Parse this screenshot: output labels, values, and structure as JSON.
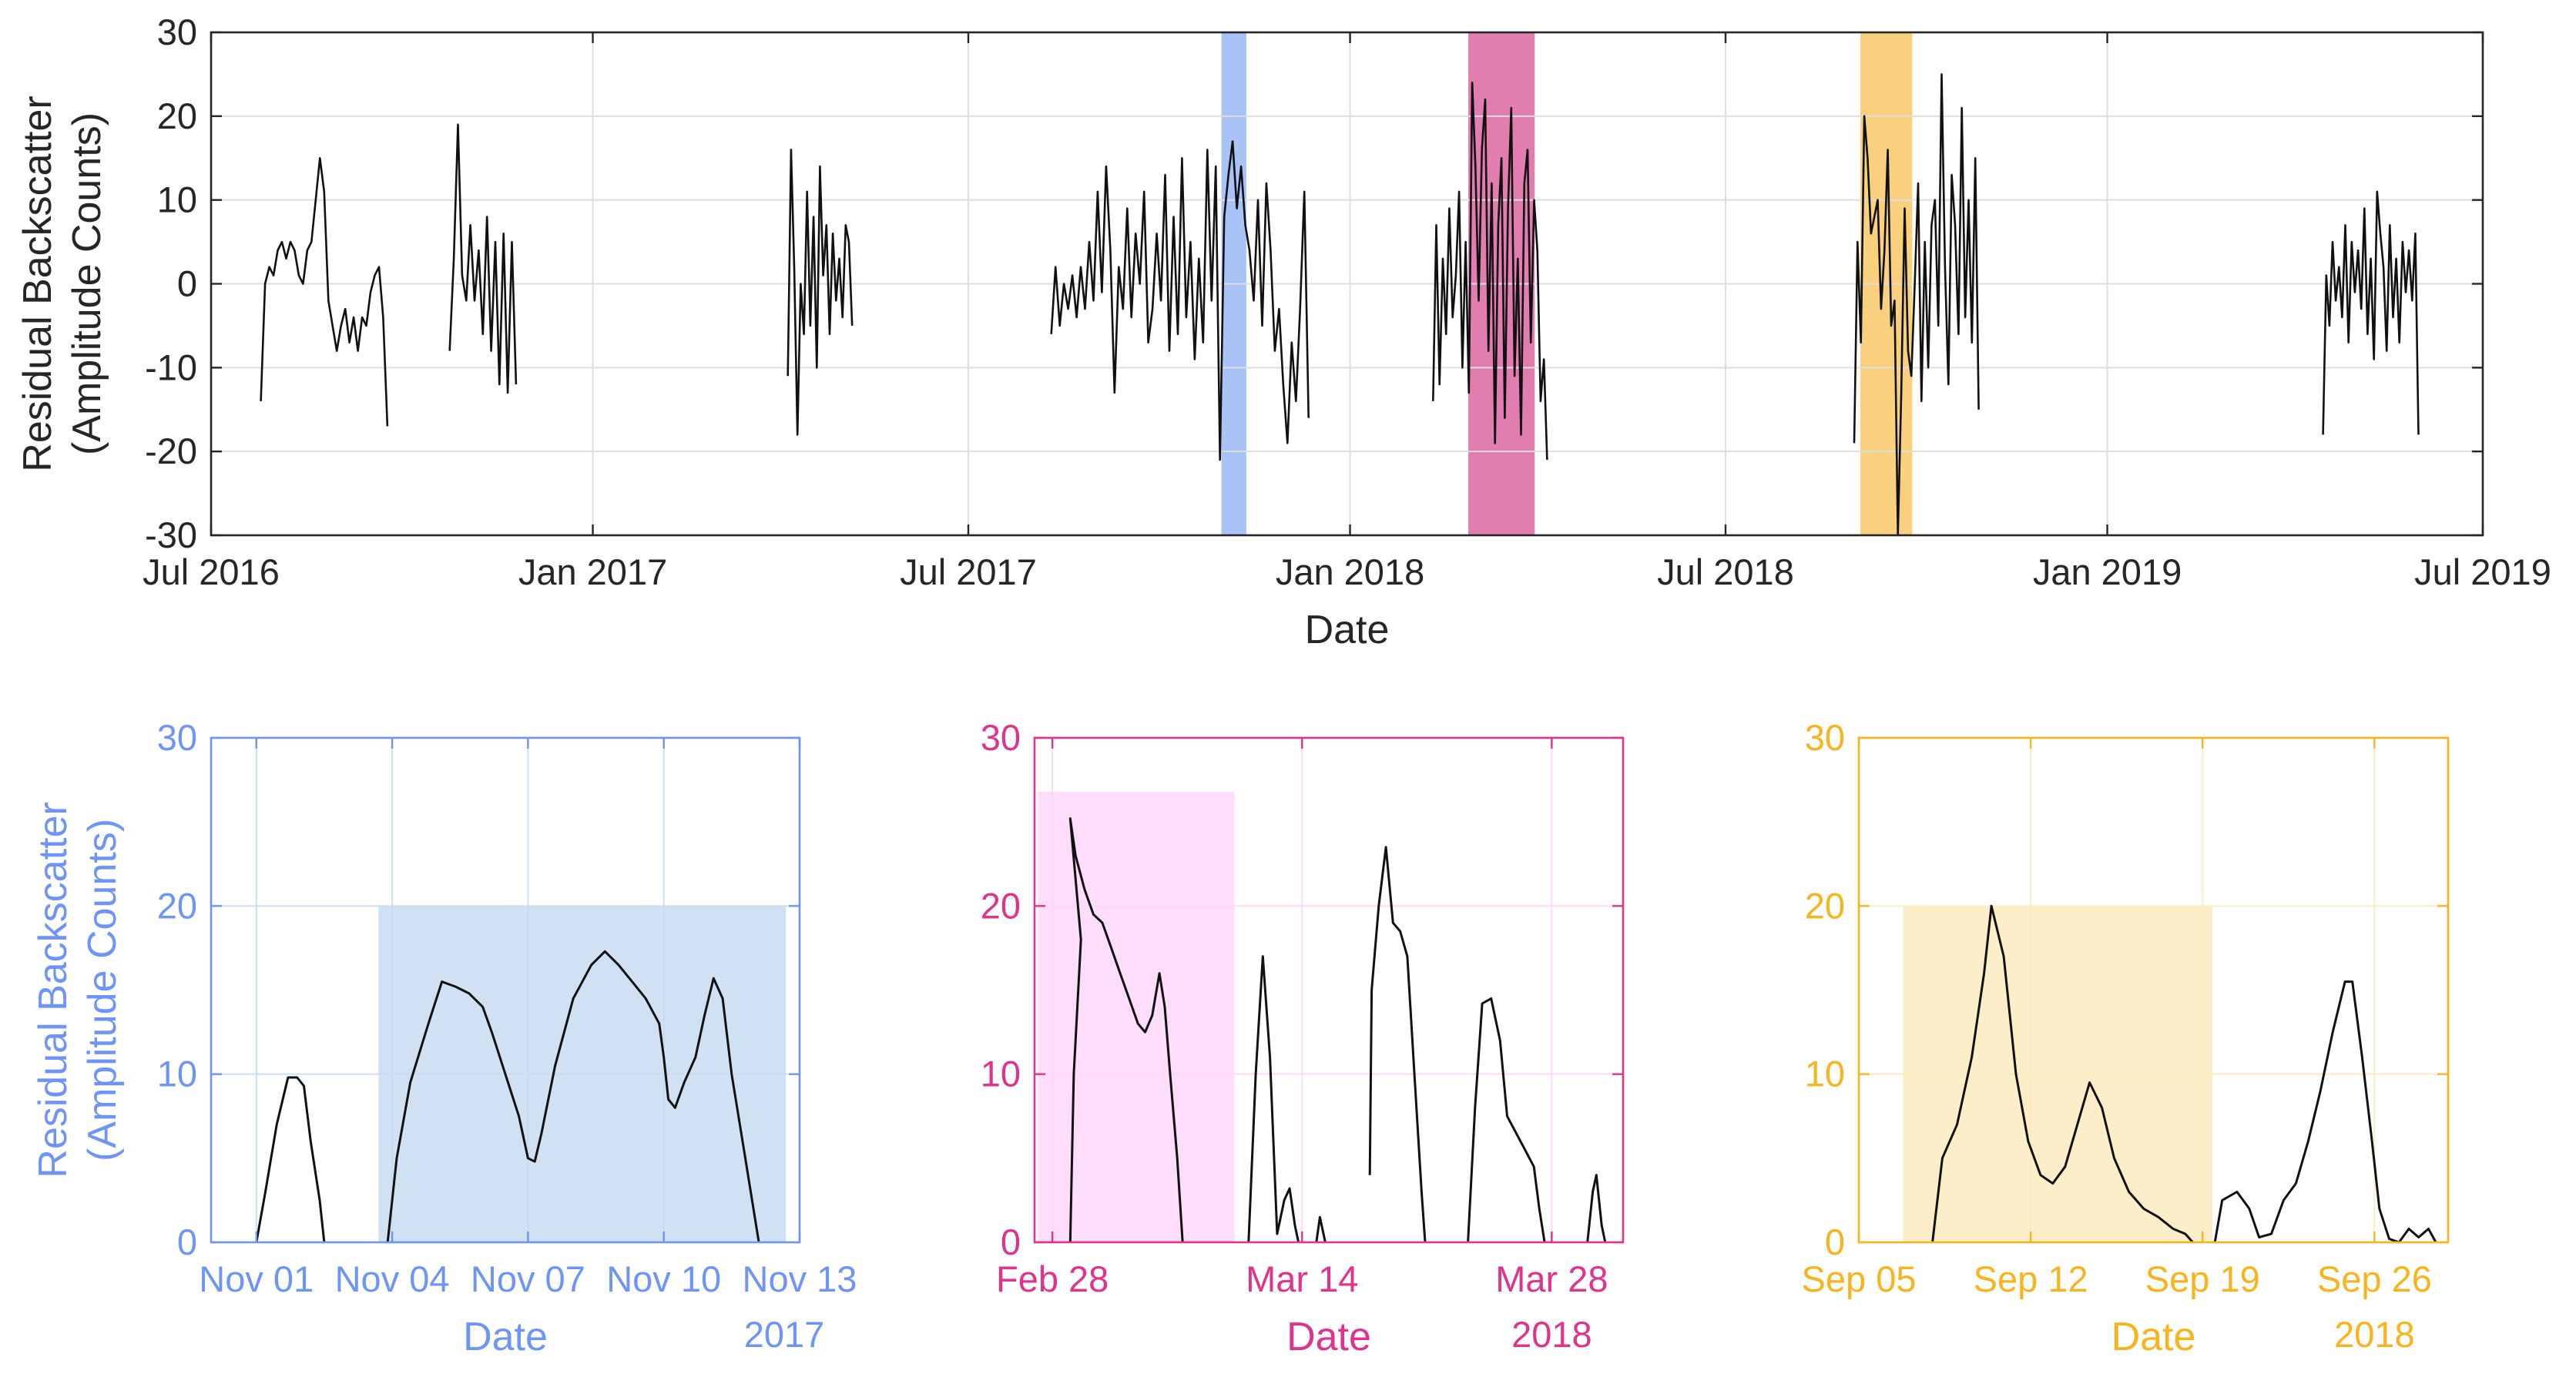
{
  "colors": {
    "blue": "#6E95F5",
    "blue_span": "#A9C3F7",
    "blue_window": "#C7DCF0",
    "pink": "#E0338C",
    "pink_span": "#E27DB0",
    "pink_window": "#FDD7F8",
    "gold": "#F8B41C",
    "gold_span": "#F9D07E",
    "gold_window": "#FBEBBF",
    "trace": "#111111",
    "axis": "#262626",
    "grid": "#DEDEDE"
  },
  "chart_data": [
    {
      "id": "overview",
      "type": "line",
      "xlabel": "Date",
      "ylabel": [
        "Residual Backscatter",
        "(Amplitude Counts)"
      ],
      "xlim": [
        "2016-07-01",
        "2019-07-01"
      ],
      "ylim": [
        -30,
        30
      ],
      "yticks": [
        30,
        20,
        10,
        0,
        -10,
        -20,
        -30
      ],
      "ytick_labels": [
        "30",
        "20",
        "10",
        "0",
        "-10",
        "-20",
        "-30"
      ],
      "xticks": [
        {
          "date": "2016-07-01",
          "label": "Jul 2016"
        },
        {
          "date": "2017-01-01",
          "label": "Jan 2017"
        },
        {
          "date": "2017-07-01",
          "label": "Jul 2017"
        },
        {
          "date": "2018-01-01",
          "label": "Jan 2018"
        },
        {
          "date": "2018-07-01",
          "label": "Jul 2018"
        },
        {
          "date": "2019-01-01",
          "label": "Jan 2019"
        },
        {
          "date": "2019-07-01",
          "label": "Jul 2019"
        }
      ],
      "highlights": [
        {
          "start": "2017-10-31",
          "end": "2017-11-12",
          "color": "blue"
        },
        {
          "start": "2018-02-27",
          "end": "2018-03-31",
          "color": "pink"
        },
        {
          "start": "2018-09-04",
          "end": "2018-09-29",
          "color": "gold"
        }
      ],
      "segments": [
        {
          "start": "2016-07-25",
          "end": "2016-09-24",
          "values": [
            -14,
            0,
            2,
            1,
            4,
            5,
            3,
            5,
            4,
            1,
            0,
            4,
            5,
            10,
            15,
            11,
            -2,
            -5,
            -8,
            -5,
            -3,
            -7,
            -4,
            -8,
            -4,
            -5,
            -1,
            1,
            2,
            -4,
            -17
          ]
        },
        {
          "start": "2016-10-24",
          "end": "2016-11-25",
          "values": [
            -8,
            3,
            19,
            1,
            -2,
            7,
            -2,
            4,
            -6,
            8,
            -8,
            5,
            -12,
            6,
            -13,
            5,
            -12
          ]
        },
        {
          "start": "2017-04-05",
          "end": "2017-05-06",
          "values": [
            -11,
            16,
            2,
            -18,
            0,
            -6,
            11,
            -5,
            8,
            -10,
            14,
            1,
            7,
            -6,
            6,
            -2,
            3,
            -4,
            7,
            5,
            -5
          ]
        },
        {
          "start": "2017-08-10",
          "end": "2017-12-12",
          "values": [
            -6,
            2,
            -5,
            0,
            -3,
            1,
            -4,
            2,
            -3,
            5,
            -2,
            11,
            -1,
            14,
            4,
            -13,
            2,
            -3,
            9,
            -4,
            6,
            0,
            11,
            -7,
            -3,
            6,
            -2,
            13,
            -8,
            8,
            -6,
            15,
            -4,
            5,
            -9,
            3,
            -7,
            16,
            -2,
            14,
            -21,
            8,
            13,
            17,
            9,
            14,
            7,
            4,
            -2,
            10,
            -5,
            12,
            4,
            -8,
            -3,
            -12,
            -19,
            -7,
            -14,
            -3,
            11,
            -16
          ]
        },
        {
          "start": "2018-02-10",
          "end": "2018-04-06",
          "values": [
            -14,
            7,
            -12,
            3,
            -6,
            9,
            -4,
            1,
            11,
            -10,
            5,
            -13,
            24,
            14,
            -2,
            16,
            22,
            -8,
            12,
            -19,
            7,
            15,
            -16,
            9,
            21,
            -11,
            3,
            -18,
            12,
            16,
            -7,
            10,
            4,
            -14,
            -9,
            -21
          ]
        },
        {
          "start": "2018-09-01",
          "end": "2018-10-31",
          "values": [
            -19,
            5,
            -7,
            20,
            15,
            6,
            8,
            10,
            -3,
            4,
            16,
            -5,
            -2,
            -30,
            -13,
            9,
            -8,
            -11,
            0,
            12,
            -14,
            5,
            -10,
            7,
            10,
            -5,
            25,
            2,
            -12,
            13,
            7,
            -6,
            21,
            -4,
            10,
            -7,
            15,
            -15
          ]
        },
        {
          "start": "2019-04-15",
          "end": "2019-05-31",
          "values": [
            -18,
            1,
            -5,
            5,
            -2,
            2,
            -4,
            7,
            -7,
            5,
            -1,
            4,
            -3,
            9,
            -6,
            3,
            -9,
            11,
            6,
            2,
            -8,
            7,
            -4,
            3,
            -7,
            5,
            -1,
            4,
            -2,
            6,
            -18
          ]
        }
      ]
    },
    {
      "id": "panel-nov-2017",
      "type": "line",
      "xlabel": "Date",
      "year_label": "2017",
      "ylabel": [
        "Residual Backscatter",
        "(Amplitude Counts)"
      ],
      "color": "blue",
      "xlim": [
        "2017-10-31",
        "2017-11-13"
      ],
      "ylim": [
        0,
        30
      ],
      "yticks": [
        30,
        20,
        10,
        0
      ],
      "ytick_labels": [
        "30",
        "20",
        "10",
        "0"
      ],
      "xticks": [
        {
          "date": "2017-11-01",
          "label": "Nov 01"
        },
        {
          "date": "2017-11-04",
          "label": "Nov 04"
        },
        {
          "date": "2017-11-07",
          "label": "Nov 07"
        },
        {
          "date": "2017-11-10",
          "label": "Nov 10"
        },
        {
          "date": "2017-11-13",
          "label": "Nov 13"
        }
      ],
      "window": {
        "start": "2017-11-03.7",
        "end": "2017-11-12.7",
        "top": 20
      },
      "curves": [
        [
          [
            "2017-11-01.0",
            0
          ],
          [
            "2017-11-01.2",
            3
          ],
          [
            "2017-11-01.45",
            7
          ],
          [
            "2017-11-01.7",
            9.8
          ],
          [
            "2017-11-01.9",
            9.8
          ],
          [
            "2017-11-02.05",
            9.3
          ],
          [
            "2017-11-02.2",
            6
          ],
          [
            "2017-11-02.4",
            2.5
          ],
          [
            "2017-11-02.5",
            0
          ]
        ],
        [
          [
            "2017-11-03.9",
            0
          ],
          [
            "2017-11-04.1",
            5
          ],
          [
            "2017-11-04.4",
            9.5
          ],
          [
            "2017-11-04.8",
            13
          ],
          [
            "2017-11-05.1",
            15.5
          ],
          [
            "2017-11-05.4",
            15.2
          ],
          [
            "2017-11-05.7",
            14.8
          ],
          [
            "2017-11-06.0",
            14
          ],
          [
            "2017-11-06.2",
            12.5
          ],
          [
            "2017-11-06.5",
            10
          ],
          [
            "2017-11-06.8",
            7.5
          ],
          [
            "2017-11-07.0",
            5
          ],
          [
            "2017-11-07.15",
            4.8
          ],
          [
            "2017-11-07.3",
            6.5
          ],
          [
            "2017-11-07.6",
            10.5
          ],
          [
            "2017-11-08.0",
            14.5
          ],
          [
            "2017-11-08.4",
            16.5
          ],
          [
            "2017-11-08.7",
            17.3
          ],
          [
            "2017-11-09.0",
            16.5
          ],
          [
            "2017-11-09.3",
            15.5
          ],
          [
            "2017-11-09.6",
            14.5
          ],
          [
            "2017-11-09.9",
            13
          ],
          [
            "2017-11-10.0",
            11
          ],
          [
            "2017-11-10.1",
            8.5
          ],
          [
            "2017-11-10.25",
            8
          ],
          [
            "2017-11-10.45",
            9.5
          ],
          [
            "2017-11-10.7",
            11
          ],
          [
            "2017-11-10.9",
            13.5
          ],
          [
            "2017-11-11.1",
            15.7
          ],
          [
            "2017-11-11.3",
            14.5
          ],
          [
            "2017-11-11.5",
            10
          ],
          [
            "2017-11-11.8",
            5
          ],
          [
            "2017-11-12.1",
            0
          ]
        ]
      ]
    },
    {
      "id": "panel-mar-2018",
      "type": "line",
      "xlabel": "Date",
      "year_label": "2018",
      "color": "pink",
      "xlim": [
        "2018-02-27",
        "2018-04-01"
      ],
      "ylim": [
        0,
        30
      ],
      "yticks": [
        30,
        20,
        10,
        0
      ],
      "ytick_labels": [
        "30",
        "20",
        "10",
        "0"
      ],
      "xticks": [
        {
          "date": "2018-02-28",
          "label": "Feb 28"
        },
        {
          "date": "2018-03-14",
          "label": "Mar 14"
        },
        {
          "date": "2018-03-28",
          "label": "Mar 28"
        }
      ],
      "window": {
        "start": "2018-02-27.2",
        "end": "2018-03-10.2",
        "top": 26.8
      },
      "curves": [
        [
          [
            "2018-02-29.0",
            0
          ],
          [
            "2018-02-29.2",
            10
          ],
          [
            "2018-02-29.6",
            18
          ],
          [
            "2018-03-01.0",
            25.2
          ],
          [
            "2018-03-01.3",
            23
          ],
          [
            "2018-03-01.8",
            21
          ],
          [
            "2018-03-02.3",
            19.5
          ],
          [
            "2018-03-02.8",
            19
          ],
          [
            "2018-03-03.3",
            17.5
          ],
          [
            "2018-03-03.8",
            16
          ],
          [
            "2018-03-04.3",
            14.5
          ],
          [
            "2018-03-04.8",
            13
          ],
          [
            "2018-03-05.2",
            12.5
          ],
          [
            "2018-03-05.6",
            13.5
          ],
          [
            "2018-03-06.0",
            16
          ],
          [
            "2018-03-06.3",
            14
          ],
          [
            "2018-03-06.6",
            10
          ],
          [
            "2018-03-07.0",
            5
          ],
          [
            "2018-03-07.3",
            0
          ]
        ],
        [
          [
            "2018-03-11.0",
            0
          ],
          [
            "2018-03-11.4",
            10
          ],
          [
            "2018-03-11.8",
            17
          ],
          [
            "2018-03-12.2",
            11
          ],
          [
            "2018-03-12.6",
            0.5
          ],
          [
            "2018-03-13.0",
            2.5
          ],
          [
            "2018-03-13.3",
            3.2
          ],
          [
            "2018-03-13.6",
            1
          ],
          [
            "2018-03-13.8",
            0
          ]
        ],
        [
          [
            "2018-03-14.8",
            0
          ],
          [
            "2018-03-15.0",
            1.5
          ],
          [
            "2018-03-15.3",
            0
          ]
        ],
        [
          [
            "2018-03-17.8",
            4
          ],
          [
            "2018-03-17.9",
            15
          ],
          [
            "2018-03-18.3",
            20
          ],
          [
            "2018-03-18.7",
            23.5
          ],
          [
            "2018-03-19.1",
            19
          ],
          [
            "2018-03-19.5",
            18.5
          ],
          [
            "2018-03-19.9",
            17
          ],
          [
            "2018-03-20.3",
            10
          ],
          [
            "2018-03-20.7",
            3
          ],
          [
            "2018-03-20.9",
            0
          ]
        ],
        [
          [
            "2018-03-23.3",
            0
          ],
          [
            "2018-03-23.7",
            8
          ],
          [
            "2018-03-24.1",
            14.2
          ],
          [
            "2018-03-24.6",
            14.5
          ],
          [
            "2018-03-25.1",
            12
          ],
          [
            "2018-03-25.5",
            7.5
          ],
          [
            "2018-03-26.0",
            6.5
          ],
          [
            "2018-03-26.5",
            5.5
          ],
          [
            "2018-03-27.0",
            4.5
          ],
          [
            "2018-03-27.3",
            2
          ],
          [
            "2018-03-27.6",
            0
          ]
        ],
        [
          [
            "2018-03-30.0",
            0
          ],
          [
            "2018-03-30.3",
            3
          ],
          [
            "2018-03-30.5",
            4
          ],
          [
            "2018-03-30.8",
            1
          ],
          [
            "2018-03-31.0",
            0
          ]
        ]
      ]
    },
    {
      "id": "panel-sep-2018",
      "type": "line",
      "xlabel": "Date",
      "year_label": "2018",
      "color": "gold",
      "xlim": [
        "2018-09-05",
        "2018-09-29"
      ],
      "ylim": [
        0,
        30
      ],
      "yticks": [
        30,
        20,
        10,
        0
      ],
      "ytick_labels": [
        "30",
        "20",
        "10",
        "0"
      ],
      "xticks": [
        {
          "date": "2018-09-05",
          "label": "Sep 05"
        },
        {
          "date": "2018-09-12",
          "label": "Sep 12"
        },
        {
          "date": "2018-09-19",
          "label": "Sep 19"
        },
        {
          "date": "2018-09-26",
          "label": "Sep 26"
        }
      ],
      "window": {
        "start": "2018-09-06.8",
        "end": "2018-09-19.4",
        "top": 20
      },
      "curves": [
        [
          [
            "2018-09-08.0",
            0
          ],
          [
            "2018-09-08.4",
            5
          ],
          [
            "2018-09-09.0",
            7
          ],
          [
            "2018-09-09.6",
            11
          ],
          [
            "2018-09-10.1",
            16
          ],
          [
            "2018-09-10.4",
            20
          ],
          [
            "2018-09-10.9",
            17
          ],
          [
            "2018-09-11.4",
            10
          ],
          [
            "2018-09-11.9",
            6
          ],
          [
            "2018-09-12.4",
            4
          ],
          [
            "2018-09-12.9",
            3.5
          ],
          [
            "2018-09-13.4",
            4.5
          ],
          [
            "2018-09-13.9",
            7
          ],
          [
            "2018-09-14.4",
            9.5
          ],
          [
            "2018-09-14.9",
            8
          ],
          [
            "2018-09-15.4",
            5
          ],
          [
            "2018-09-16.0",
            3
          ],
          [
            "2018-09-16.6",
            2
          ],
          [
            "2018-09-17.2",
            1.5
          ],
          [
            "2018-09-17.8",
            0.8
          ],
          [
            "2018-09-18.3",
            0.5
          ],
          [
            "2018-09-18.6",
            0
          ]
        ],
        [
          [
            "2018-09-19.5",
            0
          ],
          [
            "2018-09-19.8",
            2.5
          ],
          [
            "2018-09-20.4",
            3
          ],
          [
            "2018-09-20.9",
            2
          ],
          [
            "2018-09-21.3",
            0.3
          ],
          [
            "2018-09-21.8",
            0.5
          ],
          [
            "2018-09-22.3",
            2.5
          ],
          [
            "2018-09-22.8",
            3.5
          ],
          [
            "2018-09-23.3",
            6
          ],
          [
            "2018-09-23.8",
            9
          ],
          [
            "2018-09-24.3",
            12.5
          ],
          [
            "2018-09-24.8",
            15.5
          ],
          [
            "2018-09-25.1",
            15.5
          ],
          [
            "2018-09-25.5",
            11
          ],
          [
            "2018-09-25.9",
            6
          ],
          [
            "2018-09-26.2",
            2
          ],
          [
            "2018-09-26.6",
            0.2
          ],
          [
            "2018-09-27.0",
            0
          ],
          [
            "2018-09-27.4",
            0.8
          ],
          [
            "2018-09-27.8",
            0.3
          ],
          [
            "2018-09-28.2",
            0.8
          ],
          [
            "2018-09-28.5",
            0
          ]
        ]
      ]
    }
  ]
}
